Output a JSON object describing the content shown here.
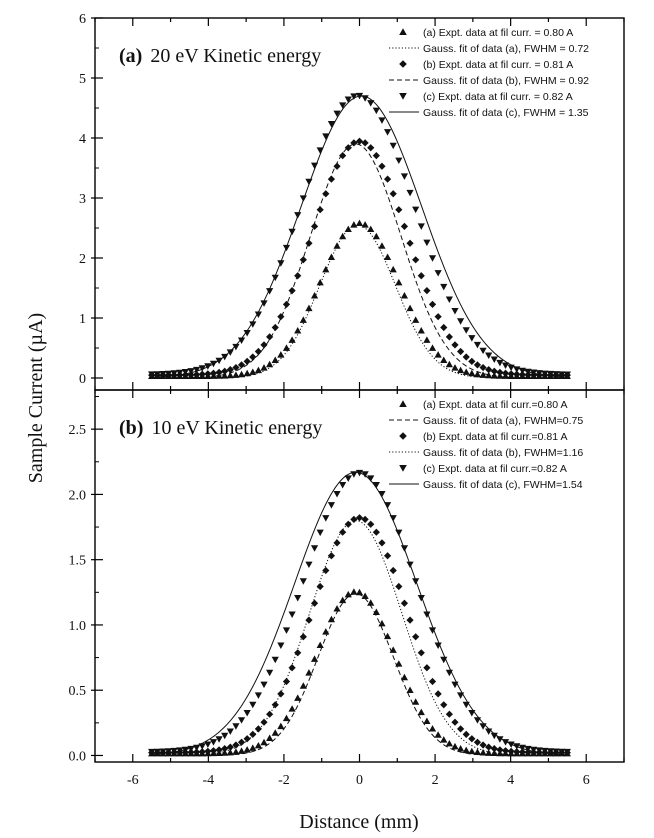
{
  "chart_data": {
    "type": "scatter",
    "shared_xlabel": "Distance (mm)",
    "shared_ylabel": "Sample Current (µA)",
    "xlim": [
      -7,
      7
    ],
    "xticks": [
      "-6",
      "-4",
      "-2",
      "0",
      "2",
      "4",
      "6"
    ],
    "panels": [
      {
        "id": "a",
        "title_letter": "(a)",
        "title_text": "20 eV Kinetic energy",
        "ylim": [
          -0.2,
          6
        ],
        "yticks": [
          "0",
          "1",
          "2",
          "3",
          "4",
          "5",
          "6"
        ],
        "legend": [
          {
            "label": "(a) Expt. data at fil curr. = 0.80 A",
            "kind": "marker",
            "marker": "triangle-up"
          },
          {
            "label": "Gauss. fit of data (a), FWHM = 0.72",
            "kind": "line",
            "dash": "dotted"
          },
          {
            "label": "(b) Expt. data at fil curr. = 0.81 A",
            "kind": "marker",
            "marker": "diamond"
          },
          {
            "label": "Gauss. fit of data (b), FWHM = 0.92",
            "kind": "line",
            "dash": "dashed"
          },
          {
            "label": "(c) Expt. data at fil curr. = 0.82 A",
            "kind": "marker",
            "marker": "triangle-down"
          },
          {
            "label": "Gauss. fit of data (c), FWHM = 1.35",
            "kind": "line",
            "dash": "solid"
          }
        ],
        "series": [
          {
            "name": "(a) Expt. data at fil curr. = 0.80 A",
            "marker": "triangle-up",
            "x_range": [
              -5.5,
              5.5
            ],
            "peak": 2.55,
            "center": 0.0,
            "sigma": 1.05
          },
          {
            "name": "Gauss. fit of data (a), FWHM = 0.72",
            "line": "dotted",
            "x_range": [
              -4.5,
              4.5
            ],
            "peak": 2.55,
            "center": -0.05,
            "sigma": 1.0
          },
          {
            "name": "(b) Expt. data at fil curr. = 0.81 A",
            "marker": "diamond",
            "x_range": [
              -5.5,
              5.5
            ],
            "peak": 3.9,
            "center": 0.0,
            "sigma": 1.25
          },
          {
            "name": "Gauss. fit of data (b), FWHM = 0.92",
            "line": "dashed",
            "x_range": [
              -4.5,
              4.5
            ],
            "peak": 3.9,
            "center": -0.1,
            "sigma": 1.2
          },
          {
            "name": "(c) Expt. data at fil curr. = 0.82 A",
            "marker": "triangle-down",
            "x_range": [
              -5.5,
              5.5
            ],
            "peak": 4.65,
            "center": -0.05,
            "sigma": 1.5
          },
          {
            "name": "Gauss. fit of data (c), FWHM = 1.35",
            "line": "solid",
            "x_range": [
              -5.5,
              5.5
            ],
            "peak": 4.7,
            "center": 0.05,
            "sigma": 1.6
          }
        ]
      },
      {
        "id": "b",
        "title_letter": "(b)",
        "title_text": "10 eV Kinetic energy",
        "ylim": [
          -0.05,
          2.8
        ],
        "yticks": [
          "0.0",
          "0.5",
          "1.0",
          "1.5",
          "2.0",
          "2.5"
        ],
        "legend": [
          {
            "label": "(a) Expt. data at fil curr.=0.80 A",
            "kind": "marker",
            "marker": "triangle-up"
          },
          {
            "label": "Gauss. fit of data (a), FWHM=0.75",
            "kind": "line",
            "dash": "dashed"
          },
          {
            "label": "(b) Expt. data at fil curr.=0.81 A",
            "kind": "marker",
            "marker": "diamond"
          },
          {
            "label": "Gauss. fit of data (b), FWHM=1.16",
            "kind": "line",
            "dash": "dotted"
          },
          {
            "label": "(c) Expt. data at fil curr.=0.82 A",
            "kind": "marker",
            "marker": "triangle-down"
          },
          {
            "label": "Gauss. fit of data (c), FWHM=1.54",
            "kind": "line",
            "dash": "solid"
          }
        ],
        "series": [
          {
            "name": "(a) Expt. data at fil curr.=0.80 A",
            "marker": "triangle-up",
            "x_range": [
              -5.5,
              5.5
            ],
            "peak": 1.24,
            "center": -0.1,
            "sigma": 1.05
          },
          {
            "name": "Gauss. fit of data (a), FWHM=0.75",
            "line": "dashed",
            "x_range": [
              -5.0,
              5.0
            ],
            "peak": 1.24,
            "center": -0.1,
            "sigma": 1.0
          },
          {
            "name": "(b) Expt. data at fil curr.=0.81 A",
            "marker": "diamond",
            "x_range": [
              -5.5,
              5.5
            ],
            "peak": 1.8,
            "center": 0.0,
            "sigma": 1.25
          },
          {
            "name": "Gauss. fit of data (b), FWHM=1.16",
            "line": "dotted",
            "x_range": [
              -5.0,
              5.0
            ],
            "peak": 1.8,
            "center": -0.1,
            "sigma": 1.22
          },
          {
            "name": "(c) Expt. data at fil curr.=0.82 A",
            "marker": "triangle-down",
            "x_range": [
              -5.5,
              5.5
            ],
            "peak": 2.14,
            "center": 0.0,
            "sigma": 1.5
          },
          {
            "name": "Gauss. fit of data (c), FWHM=1.54",
            "line": "solid",
            "x_range": [
              -5.5,
              5.5
            ],
            "peak": 2.17,
            "center": -0.1,
            "sigma": 1.62
          }
        ]
      }
    ]
  }
}
